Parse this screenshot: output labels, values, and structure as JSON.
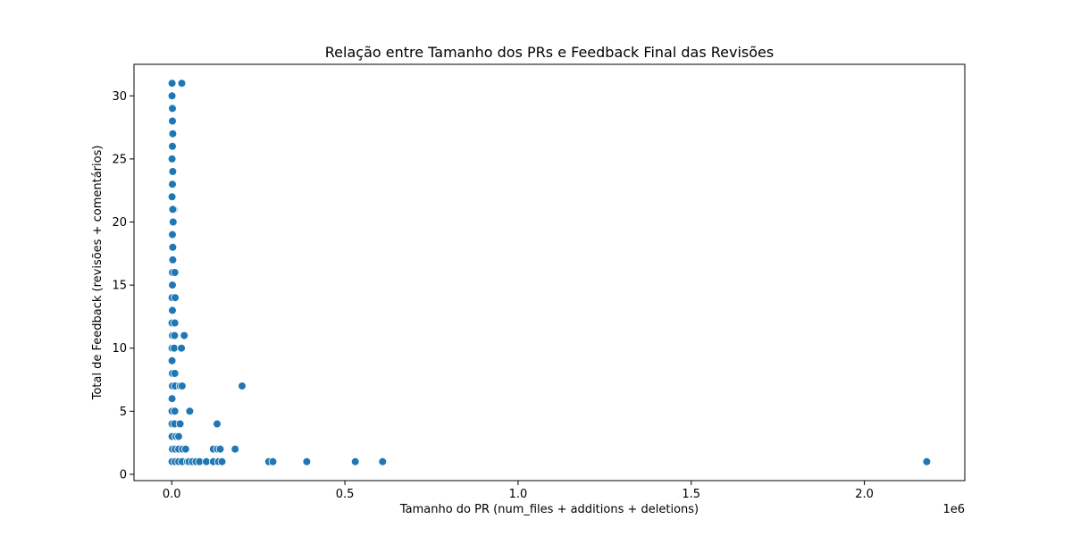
{
  "chart_data": {
    "type": "scatter",
    "title": "Relação entre Tamanho dos PRs e Feedback Final das Revisões",
    "xlabel": "Tamanho do PR (num_files + additions + deletions)",
    "ylabel": "Total de Feedback (revisões + comentários)",
    "x_offset_label": "1e6",
    "xlim": [
      -0.109,
      2.29
    ],
    "ylim": [
      -0.5,
      32.5
    ],
    "x_ticks": [
      0.0,
      0.5,
      1.0,
      1.5,
      2.0
    ],
    "x_tick_labels": [
      "0.0",
      "0.5",
      "1.0",
      "1.5",
      "2.0"
    ],
    "y_ticks": [
      0,
      5,
      10,
      15,
      20,
      25,
      30
    ],
    "y_tick_labels": [
      "0",
      "5",
      "10",
      "15",
      "20",
      "25",
      "30"
    ],
    "grid": false,
    "marker_color": "#1f77b4",
    "x_units": "millions (scaled by 1e6)",
    "points": [
      [
        0.001,
        31
      ],
      [
        0.029,
        31
      ],
      [
        0.001,
        30
      ],
      [
        0.002,
        29
      ],
      [
        0.002,
        28
      ],
      [
        0.003,
        27
      ],
      [
        0.002,
        26
      ],
      [
        0.001,
        25
      ],
      [
        0.003,
        24
      ],
      [
        0.002,
        23
      ],
      [
        0.001,
        22
      ],
      [
        0.006,
        21
      ],
      [
        0.003,
        21
      ],
      [
        0.004,
        20
      ],
      [
        0.002,
        19
      ],
      [
        0.003,
        18
      ],
      [
        0.003,
        17
      ],
      [
        0.002,
        16
      ],
      [
        0.009,
        16
      ],
      [
        0.002,
        15
      ],
      [
        0.001,
        14
      ],
      [
        0.01,
        14
      ],
      [
        0.002,
        13
      ],
      [
        0.001,
        12
      ],
      [
        0.009,
        12
      ],
      [
        0.002,
        11
      ],
      [
        0.008,
        11
      ],
      [
        0.036,
        11
      ],
      [
        0.001,
        10
      ],
      [
        0.007,
        10
      ],
      [
        0.028,
        10
      ],
      [
        0.001,
        9
      ],
      [
        0.002,
        8
      ],
      [
        0.009,
        8
      ],
      [
        0.002,
        7
      ],
      [
        0.01,
        7
      ],
      [
        0.024,
        7
      ],
      [
        0.03,
        7
      ],
      [
        0.203,
        7
      ],
      [
        0.001,
        6
      ],
      [
        0.001,
        5
      ],
      [
        0.009,
        5
      ],
      [
        0.052,
        5
      ],
      [
        0.001,
        4
      ],
      [
        0.008,
        4
      ],
      [
        0.024,
        4
      ],
      [
        0.131,
        4
      ],
      [
        0.001,
        3
      ],
      [
        0.012,
        3
      ],
      [
        0.02,
        3
      ],
      [
        0.002,
        2
      ],
      [
        0.01,
        2
      ],
      [
        0.02,
        2
      ],
      [
        0.031,
        2
      ],
      [
        0.04,
        2
      ],
      [
        0.12,
        2
      ],
      [
        0.132,
        2
      ],
      [
        0.14,
        2
      ],
      [
        0.183,
        2
      ],
      [
        0.001,
        1
      ],
      [
        0.01,
        1
      ],
      [
        0.02,
        1
      ],
      [
        0.03,
        1
      ],
      [
        0.045,
        1
      ],
      [
        0.05,
        1
      ],
      [
        0.06,
        1
      ],
      [
        0.07,
        1
      ],
      [
        0.08,
        1
      ],
      [
        0.1,
        1
      ],
      [
        0.12,
        1
      ],
      [
        0.135,
        1
      ],
      [
        0.145,
        1
      ],
      [
        0.28,
        1
      ],
      [
        0.292,
        1
      ],
      [
        0.39,
        1
      ],
      [
        0.53,
        1
      ],
      [
        0.609,
        1
      ],
      [
        2.18,
        1
      ]
    ]
  }
}
